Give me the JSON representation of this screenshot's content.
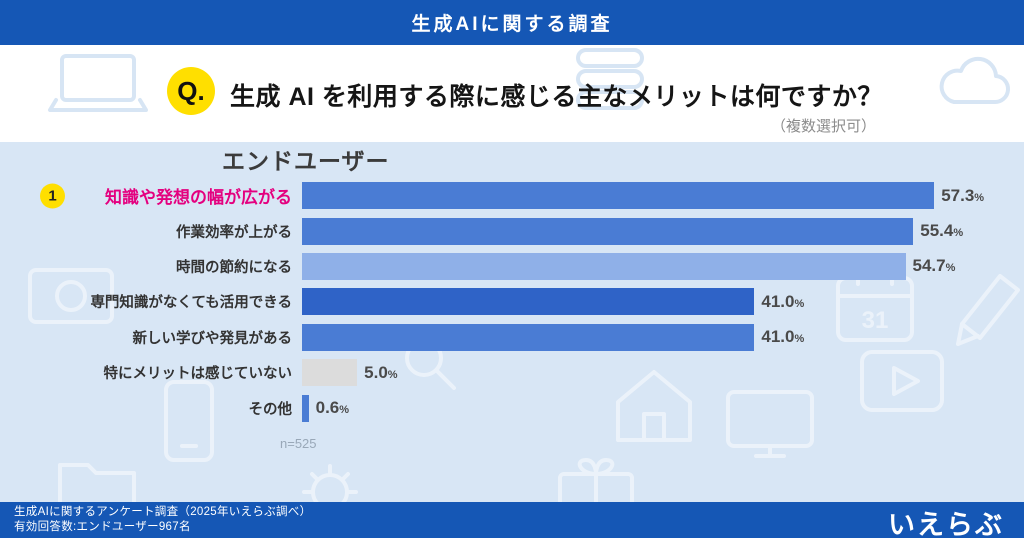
{
  "header": {
    "title": "生成AIに関する調査"
  },
  "question": {
    "badge": "Q.",
    "text": "生成 AI を利用する際に感じる主なメリットは何ですか？",
    "note": "（複数選択可）"
  },
  "chart_data": {
    "type": "bar",
    "orientation": "horizontal",
    "title": "エンドユーザー",
    "categories": [
      "知識や発想の幅が広がる",
      "作業効率が上がる",
      "時間の節約になる",
      "専門知識がなくても活用できる",
      "新しい学びや発見がある",
      "特にメリットは感じていない",
      "その他"
    ],
    "values": [
      57.3,
      55.4,
      54.7,
      41.0,
      41.0,
      5.0,
      0.6
    ],
    "value_labels": [
      "57.3",
      "55.4",
      "54.7",
      "41.0",
      "41.0",
      "5.0",
      "0.6"
    ],
    "unit": "%",
    "xlim": [
      0,
      60
    ],
    "grid": false,
    "legend": false,
    "sample": "n=525",
    "highlight_index": 0,
    "rank_badge": "1",
    "highlight_label_color": "#e4007f",
    "bar_colors": [
      "#4a7cd4",
      "#4a7cd4",
      "#8fb0e8",
      "#2f63c7",
      "#4a7cd4",
      "#dcdcdc",
      "#4a7cd4"
    ]
  },
  "watermark": {
    "calendar_day": "31",
    "icons": [
      "laptop",
      "server",
      "cloud",
      "banknote",
      "calendar",
      "pencil",
      "play-video",
      "monitor",
      "house",
      "gift",
      "gear",
      "magnifier",
      "smartphone",
      "folder"
    ]
  },
  "footer": {
    "line1": "生成AIに関するアンケート調査（2025年いえらぶ調べ）",
    "line2": "有効回答数:エンドユーザー967名",
    "logo": "いえらぶ"
  },
  "colors": {
    "theme_blue": "#1557b5",
    "page_bg": "#d8e6f5",
    "badge_yellow": "#ffdf00",
    "highlight_pink": "#e4007f"
  }
}
